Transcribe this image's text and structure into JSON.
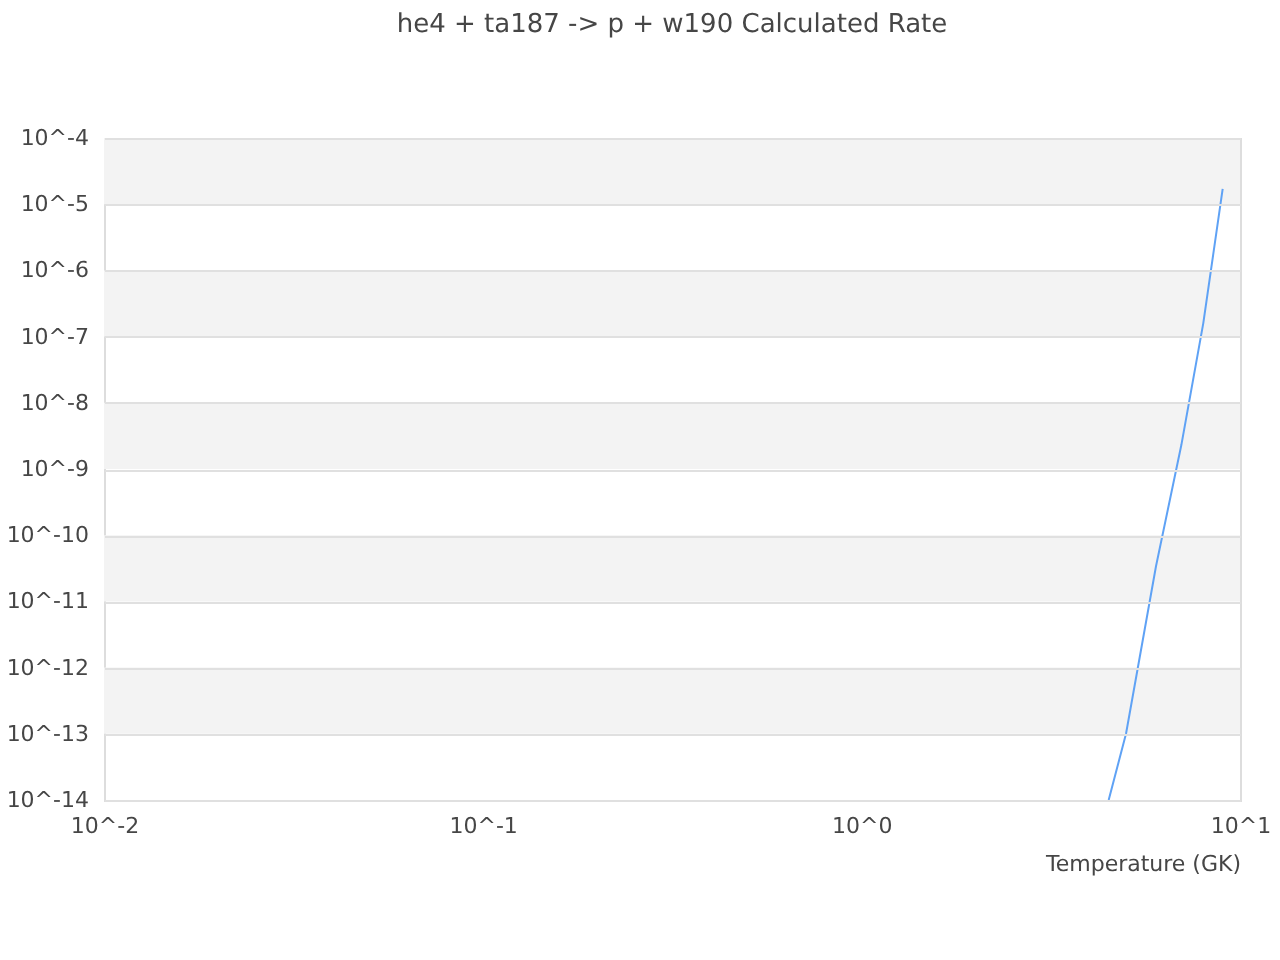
{
  "chart_data": {
    "type": "line",
    "title": "he4 + ta187 -> p + w190 Calculated Rate",
    "xlabel": "Temperature (GK)",
    "x": [
      4.5,
      5,
      6,
      7,
      8,
      9
    ],
    "series": [
      {
        "color": "#5fa2f5",
        "values": [
          1e-14,
          1e-13,
          3.4e-11,
          2.3e-09,
          1.6e-07,
          1.7e-05
        ]
      }
    ],
    "log": "xy",
    "grid": "y",
    "xlim": [
      0.01,
      10
    ],
    "xticks": [
      {
        "value": 0.01,
        "label": "10^-2"
      },
      {
        "value": 0.1,
        "label": "10^-1"
      },
      {
        "value": 1,
        "label": "10^0"
      },
      {
        "value": 10,
        "label": "10^1"
      }
    ],
    "ylim": [
      1e-14,
      0.0001
    ],
    "yticks": [
      {
        "value": 1e-14,
        "label": "10^-14"
      },
      {
        "value": 1e-13,
        "label": "10^-13"
      },
      {
        "value": 1e-12,
        "label": "10^-12"
      },
      {
        "value": 1e-11,
        "label": "10^-11"
      },
      {
        "value": 1e-10,
        "label": "10^-10"
      },
      {
        "value": 1e-09,
        "label": "10^-9"
      },
      {
        "value": 1e-08,
        "label": "10^-8"
      },
      {
        "value": 1e-07,
        "label": "10^-7"
      },
      {
        "value": 1e-06,
        "label": "10^-6"
      },
      {
        "value": 1e-05,
        "label": "10^-5"
      },
      {
        "value": 0.0001,
        "label": "10^-4"
      }
    ],
    "bands": [
      {
        "axis": "y",
        "from": 1e-05,
        "to": 0.0001,
        "color": "#f3f3f3"
      },
      {
        "axis": "y",
        "from": 1e-07,
        "to": 1e-06,
        "color": "#f3f3f3"
      },
      {
        "axis": "y",
        "from": 1e-09,
        "to": 1e-08,
        "color": "#f3f3f3"
      },
      {
        "axis": "y",
        "from": 1e-11,
        "to": 1e-10,
        "color": "#f3f3f3"
      },
      {
        "axis": "y",
        "from": 1e-13,
        "to": 1e-12,
        "color": "#f3f3f3"
      }
    ]
  }
}
